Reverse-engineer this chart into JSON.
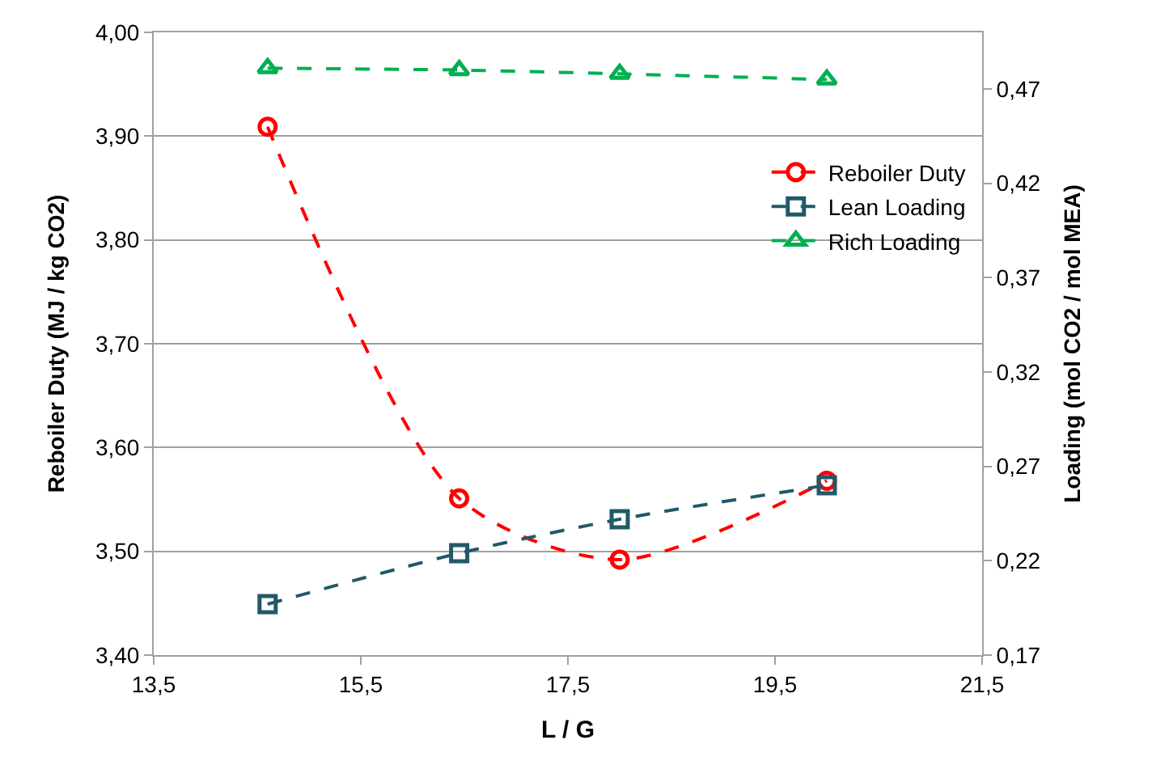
{
  "chart_data": {
    "type": "line",
    "xlabel": "L / G",
    "ylabel": "Reboiler Duty (MJ / kg CO2)",
    "y2label": "Loading (mol CO2 / mol MEA)",
    "x": [
      14.6,
      16.45,
      18.0,
      20.0
    ],
    "series": [
      {
        "name": "Reboiler Duty",
        "color": "#ff0000",
        "values": [
          3.909,
          3.551,
          3.492,
          3.568
        ],
        "marker": "circle"
      },
      {
        "name": "Lean Loading",
        "color": "#215968",
        "values": [
          0.197,
          0.224,
          0.242,
          0.26
        ],
        "marker": "square",
        "axis": "y2"
      },
      {
        "name": "Rich Loading",
        "color": "#00b050",
        "values": [
          0.481,
          0.48,
          0.478,
          0.475
        ],
        "marker": "triangle",
        "axis": "y2"
      }
    ],
    "line_style": "dashed",
    "xlim": [
      13.5,
      21.5
    ],
    "xticks": [
      {
        "value": 13.5,
        "label": "13,5"
      },
      {
        "value": 15.5,
        "label": "15,5"
      },
      {
        "value": 17.5,
        "label": "17,5"
      },
      {
        "value": 19.5,
        "label": "19,5"
      },
      {
        "value": 21.5,
        "label": "21,5"
      }
    ],
    "ylim": [
      3.4,
      4.0
    ],
    "yticks": [
      {
        "value": 3.4,
        "label": "3,40"
      },
      {
        "value": 3.5,
        "label": "3,50"
      },
      {
        "value": 3.6,
        "label": "3,60"
      },
      {
        "value": 3.7,
        "label": "3,70"
      },
      {
        "value": 3.8,
        "label": "3,80"
      },
      {
        "value": 3.9,
        "label": "3,90"
      },
      {
        "value": 4.0,
        "label": "4,00"
      }
    ],
    "y2lim": [
      0.17,
      0.5
    ],
    "y2ticks": [
      {
        "value": 0.17,
        "label": "0,17"
      },
      {
        "value": 0.22,
        "label": "0,22"
      },
      {
        "value": 0.27,
        "label": "0,27"
      },
      {
        "value": 0.32,
        "label": "0,32"
      },
      {
        "value": 0.37,
        "label": "0,37"
      },
      {
        "value": 0.42,
        "label": "0,42"
      },
      {
        "value": 0.47,
        "label": "0,47"
      }
    ],
    "grid": "y",
    "legend": "right"
  }
}
